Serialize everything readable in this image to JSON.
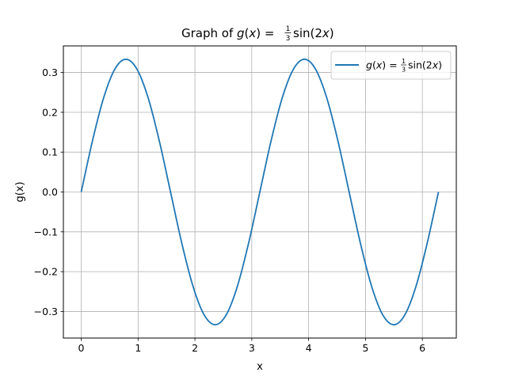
{
  "chart_data": {
    "type": "line",
    "title_parts": {
      "prefix": "Graph of ",
      "func": "g",
      "arg": "x",
      "eq": " = ",
      "frac_num": "1",
      "frac_den": "3",
      "tail": "sin(2",
      "tail_var": "x",
      "tail_close": ")"
    },
    "xlabel": "x",
    "ylabel": "g(x)",
    "xlim": [
      -0.314,
      6.597
    ],
    "ylim": [
      -0.3667,
      0.3667
    ],
    "xticks": [
      0,
      1,
      2,
      3,
      4,
      5,
      6
    ],
    "xtick_labels": [
      "0",
      "1",
      "2",
      "3",
      "4",
      "5",
      "6"
    ],
    "yticks": [
      -0.3,
      -0.2,
      -0.1,
      0.0,
      0.1,
      0.2,
      0.3
    ],
    "ytick_labels": [
      "−0.3",
      "−0.2",
      "−0.1",
      "0.0",
      "0.1",
      "0.2",
      "0.3"
    ],
    "grid": true,
    "legend_position": "top-right",
    "series": [
      {
        "name": "g(x) = (1/3) sin(2x)",
        "color": "#1f77b4",
        "x": [
          0.0,
          0.1963,
          0.3927,
          0.589,
          0.7854,
          0.9817,
          1.1781,
          1.3744,
          1.5708,
          1.7671,
          1.9635,
          2.1598,
          2.3562,
          2.5525,
          2.7489,
          2.9452,
          3.1416,
          3.3379,
          3.5343,
          3.7306,
          3.927,
          4.1233,
          4.3197,
          4.516,
          4.7124,
          4.9087,
          5.1051,
          5.3014,
          5.4978,
          5.6941,
          5.8905,
          6.0868,
          6.2832
        ],
        "y": [
          0.0,
          0.1276,
          0.2357,
          0.308,
          0.3333,
          0.308,
          0.2357,
          0.1276,
          0.0,
          -0.1276,
          -0.2357,
          -0.308,
          -0.3333,
          -0.308,
          -0.2357,
          -0.1276,
          0.0,
          0.1276,
          0.2357,
          0.308,
          0.3333,
          0.308,
          0.2357,
          0.1276,
          0.0,
          -0.1276,
          -0.2357,
          -0.308,
          -0.3333,
          -0.308,
          -0.2357,
          -0.1276,
          0.0
        ]
      }
    ]
  }
}
